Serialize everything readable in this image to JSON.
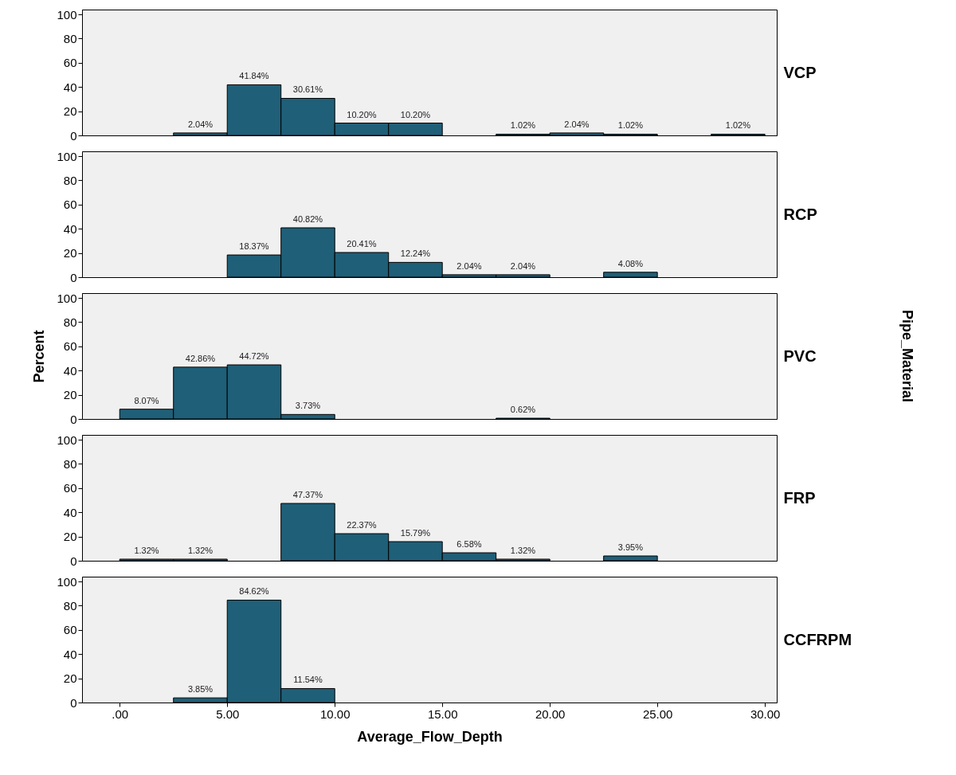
{
  "chart_data": [
    {
      "type": "histogram",
      "title": "VCP",
      "bins": [
        0,
        2.5,
        5,
        7.5,
        10,
        12.5,
        15,
        17.5,
        20,
        22.5,
        25,
        27.5,
        30
      ],
      "values": [
        0,
        2.04,
        41.84,
        30.61,
        10.2,
        10.2,
        0,
        1.02,
        2.04,
        1.02,
        0,
        1.02
      ],
      "value_labels": [
        null,
        "2.04%",
        "41.84%",
        "30.61%",
        "10.20%",
        "10.20%",
        null,
        "1.02%",
        "2.04%",
        "1.02%",
        null,
        "1.02%"
      ],
      "color": "#1f5f78",
      "xlim": [
        -1.75,
        30.55
      ],
      "ylim": [
        0,
        104
      ],
      "yticks": [
        0,
        20,
        40,
        60,
        80,
        100
      ],
      "tick_labels": "y",
      "grid": false
    },
    {
      "type": "histogram",
      "title": "RCP",
      "bins": [
        0,
        2.5,
        5,
        7.5,
        10,
        12.5,
        15,
        17.5,
        20,
        22.5,
        25,
        27.5,
        30
      ],
      "values": [
        0,
        0,
        18.37,
        40.82,
        20.41,
        12.24,
        2.04,
        2.04,
        0,
        4.08,
        0,
        0
      ],
      "value_labels": [
        null,
        null,
        "18.37%",
        "40.82%",
        "20.41%",
        "12.24%",
        "2.04%",
        "2.04%",
        null,
        "4.08%",
        null,
        null
      ],
      "color": "#1f5f78",
      "xlim": [
        -1.75,
        30.55
      ],
      "ylim": [
        0,
        104
      ],
      "yticks": [
        0,
        20,
        40,
        60,
        80,
        100
      ],
      "tick_labels": "y",
      "grid": false
    },
    {
      "type": "histogram",
      "title": "PVC",
      "ylabel": "Percent",
      "y2label": "Pipe_Material",
      "bins": [
        0,
        2.5,
        5,
        7.5,
        10,
        12.5,
        15,
        17.5,
        20,
        22.5,
        25,
        27.5,
        30
      ],
      "values": [
        8.07,
        42.86,
        44.72,
        3.73,
        0,
        0,
        0,
        0.62,
        0,
        0,
        0,
        0
      ],
      "value_labels": [
        "8.07%",
        "42.86%",
        "44.72%",
        "3.73%",
        null,
        null,
        null,
        "0.62%",
        null,
        null,
        null,
        null
      ],
      "color": "#1f5f78",
      "xlim": [
        -1.75,
        30.55
      ],
      "ylim": [
        0,
        104
      ],
      "yticks": [
        0,
        20,
        40,
        60,
        80,
        100
      ],
      "tick_labels": "y",
      "grid": false
    },
    {
      "type": "histogram",
      "title": "FRP",
      "bins": [
        0,
        2.5,
        5,
        7.5,
        10,
        12.5,
        15,
        17.5,
        20,
        22.5,
        25,
        27.5,
        30
      ],
      "values": [
        1.32,
        1.32,
        0,
        47.37,
        22.37,
        15.79,
        6.58,
        1.32,
        0,
        3.95,
        0,
        0
      ],
      "value_labels": [
        "1.32%",
        "1.32%",
        null,
        "47.37%",
        "22.37%",
        "15.79%",
        "6.58%",
        "1.32%",
        null,
        "3.95%",
        null,
        null
      ],
      "color": "#1f5f78",
      "xlim": [
        -1.75,
        30.55
      ],
      "ylim": [
        0,
        104
      ],
      "yticks": [
        0,
        20,
        40,
        60,
        80,
        100
      ],
      "tick_labels": "y",
      "grid": false
    },
    {
      "type": "histogram",
      "title": "CCFRPM",
      "xlabel": "Average_Flow_Depth",
      "bins": [
        0,
        2.5,
        5,
        7.5,
        10,
        12.5,
        15,
        17.5,
        20,
        22.5,
        25,
        27.5,
        30
      ],
      "values": [
        0,
        3.85,
        84.62,
        11.54,
        0,
        0,
        0,
        0,
        0,
        0,
        0,
        0
      ],
      "value_labels": [
        null,
        "3.85%",
        "84.62%",
        "11.54%",
        null,
        null,
        null,
        null,
        null,
        null,
        null,
        null
      ],
      "color": "#1f5f78",
      "xlim": [
        -1.75,
        30.55
      ],
      "xticks": [
        {
          "value": 0,
          "label": ".00"
        },
        {
          "value": 5,
          "label": "5.00"
        },
        {
          "value": 10,
          "label": "10.00"
        },
        {
          "value": 15,
          "label": "15.00"
        },
        {
          "value": 20,
          "label": "20.00"
        },
        {
          "value": 25,
          "label": "25.00"
        },
        {
          "value": 30,
          "label": "30.00"
        }
      ],
      "ylim": [
        0,
        104
      ],
      "yticks": [
        0,
        20,
        40,
        60,
        80,
        100
      ],
      "grid": false
    }
  ]
}
